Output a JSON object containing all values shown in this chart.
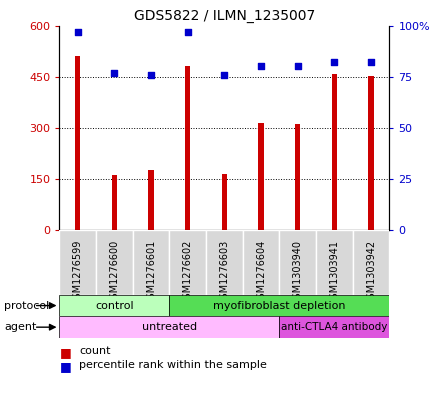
{
  "title": "GDS5822 / ILMN_1235007",
  "samples": [
    "GSM1276599",
    "GSM1276600",
    "GSM1276601",
    "GSM1276602",
    "GSM1276603",
    "GSM1276604",
    "GSM1303940",
    "GSM1303941",
    "GSM1303942"
  ],
  "counts": [
    510,
    160,
    175,
    480,
    163,
    315,
    310,
    458,
    452
  ],
  "percentiles": [
    97,
    77,
    76,
    97,
    76,
    80,
    80,
    82,
    82
  ],
  "ylim_left": [
    0,
    600
  ],
  "ylim_right": [
    0,
    100
  ],
  "yticks_left": [
    0,
    150,
    300,
    450,
    600
  ],
  "yticks_left_labels": [
    "0",
    "150",
    "300",
    "450",
    "600"
  ],
  "yticks_right": [
    0,
    25,
    50,
    75,
    100
  ],
  "yticks_right_labels": [
    "0",
    "25",
    "50",
    "75",
    "100%"
  ],
  "bar_color": "#cc0000",
  "dot_color": "#0000cc",
  "grid_color": "black",
  "protocol_control_label": "control",
  "protocol_myofib_label": "myofibroblast depletion",
  "agent_untreated_label": "untreated",
  "agent_anti_label": "anti-CTLA4 antibody",
  "protocol_color_control": "#bbffbb",
  "protocol_color_myofib": "#55dd55",
  "agent_color_untreated": "#ffbbff",
  "agent_color_anti": "#dd55dd",
  "legend_count_color": "#cc0000",
  "legend_pct_color": "#0000cc",
  "label_protocol": "protocol",
  "label_agent": "agent",
  "sample_bg_color": "#d8d8d8",
  "bar_width": 0.15
}
